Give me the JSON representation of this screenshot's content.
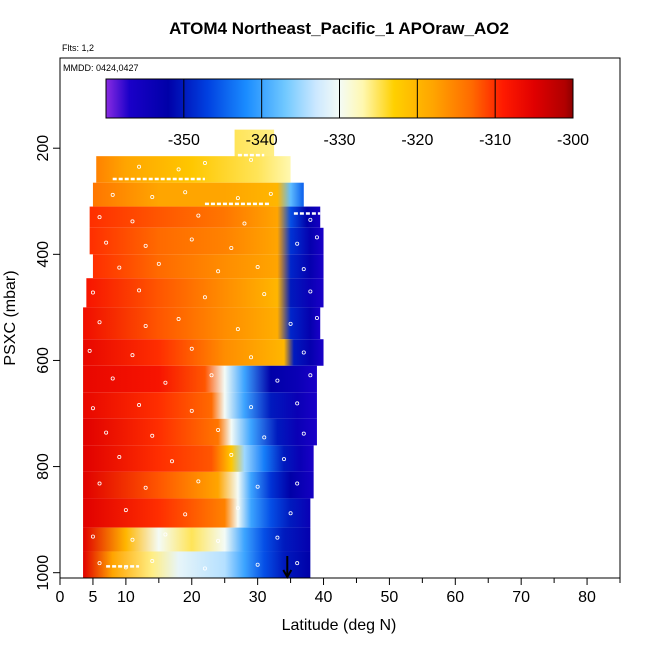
{
  "chart_data": {
    "type": "heatmap",
    "title": "ATOM4 Northeast_Pacific_1 APOraw_AO2",
    "flights_label": "Flts: 1,2",
    "mmdd_label": "MMDD: 0424,0427",
    "xlabel": "Latitude (deg N)",
    "ylabel": "PSXC (mbar)",
    "xlim": [
      0,
      85
    ],
    "ylim": [
      1010,
      30
    ],
    "x_ticks": [
      0,
      5,
      10,
      20,
      30,
      40,
      50,
      60,
      70,
      80
    ],
    "x_minor_ticks": [
      15,
      25,
      35,
      45,
      55,
      65,
      75,
      85
    ],
    "y_ticks": [
      200,
      400,
      600,
      800,
      1000
    ],
    "marker_latitude": 34.5,
    "colorbar": {
      "range": [
        -360,
        -300
      ],
      "ticks": [
        -350,
        -340,
        -330,
        -320,
        -310,
        -300
      ],
      "stops": [
        {
          "v": -360,
          "color": "#8a2be2"
        },
        {
          "v": -357,
          "color": "#1a00c8"
        },
        {
          "v": -352,
          "color": "#0000a8"
        },
        {
          "v": -347,
          "color": "#0040e0"
        },
        {
          "v": -342,
          "color": "#1a8cff"
        },
        {
          "v": -337,
          "color": "#70c8ff"
        },
        {
          "v": -333,
          "color": "#cce8ff"
        },
        {
          "v": -330,
          "color": "#f4fbf6"
        },
        {
          "v": -327,
          "color": "#fff8b0"
        },
        {
          "v": -323,
          "color": "#ffd000"
        },
        {
          "v": -318,
          "color": "#ffa500"
        },
        {
          "v": -313,
          "color": "#ff6a00"
        },
        {
          "v": -309,
          "color": "#ff1a00"
        },
        {
          "v": -305,
          "color": "#e00000"
        },
        {
          "v": -301,
          "color": "#b00000"
        },
        {
          "v": -300,
          "color": "#8b0000"
        }
      ]
    },
    "bands": [
      {
        "name": "band-150",
        "p0": 165,
        "p1": 230,
        "lat": [
          26.5,
          32.5
        ],
        "profile": [
          [
            26.5,
            -325
          ],
          [
            32.5,
            -326
          ]
        ]
      },
      {
        "name": "band-250",
        "p0": 215,
        "p1": 265,
        "lat": [
          5.5,
          35
        ],
        "profile": [
          [
            5.5,
            -315
          ],
          [
            10,
            -318
          ],
          [
            20,
            -322
          ],
          [
            30,
            -325
          ],
          [
            35,
            -327
          ]
        ]
      },
      {
        "name": "band-300",
        "p0": 265,
        "p1": 310,
        "lat": [
          5,
          37
        ],
        "profile": [
          [
            5,
            -314
          ],
          [
            15,
            -318
          ],
          [
            25,
            -318
          ],
          [
            33,
            -320
          ],
          [
            35,
            -338
          ],
          [
            37,
            -345
          ]
        ]
      },
      {
        "name": "band-350",
        "p0": 310,
        "p1": 350,
        "lat": [
          4.5,
          39.5
        ],
        "profile": [
          [
            4.5,
            -310
          ],
          [
            15,
            -312
          ],
          [
            25,
            -314
          ],
          [
            33,
            -318
          ],
          [
            35,
            -346
          ],
          [
            37.5,
            -352
          ],
          [
            39.5,
            -356
          ]
        ]
      },
      {
        "name": "band-400",
        "p0": 350,
        "p1": 400,
        "lat": [
          4.5,
          40
        ],
        "profile": [
          [
            4.5,
            -310
          ],
          [
            15,
            -313
          ],
          [
            25,
            -315
          ],
          [
            33,
            -318
          ],
          [
            35,
            -348
          ],
          [
            38,
            -353
          ],
          [
            40,
            -357
          ]
        ]
      },
      {
        "name": "band-450",
        "p0": 400,
        "p1": 445,
        "lat": [
          5,
          40
        ],
        "profile": [
          [
            5,
            -310
          ],
          [
            15,
            -313
          ],
          [
            25,
            -316
          ],
          [
            33,
            -318
          ],
          [
            35,
            -349
          ],
          [
            38,
            -353
          ],
          [
            40,
            -357
          ]
        ]
      },
      {
        "name": "band-500",
        "p0": 445,
        "p1": 500,
        "lat": [
          4,
          40
        ],
        "profile": [
          [
            4,
            -308
          ],
          [
            15,
            -312
          ],
          [
            25,
            -316
          ],
          [
            33,
            -320
          ],
          [
            35,
            -350
          ],
          [
            38,
            -354
          ],
          [
            40,
            -357
          ]
        ]
      },
      {
        "name": "band-550",
        "p0": 500,
        "p1": 560,
        "lat": [
          3.5,
          39.5
        ],
        "profile": [
          [
            3.5,
            -307
          ],
          [
            15,
            -312
          ],
          [
            25,
            -316
          ],
          [
            33,
            -319
          ],
          [
            35,
            -349
          ],
          [
            38,
            -353
          ],
          [
            39.5,
            -357
          ]
        ]
      },
      {
        "name": "band-600",
        "p0": 560,
        "p1": 610,
        "lat": [
          3.5,
          40
        ],
        "profile": [
          [
            3.5,
            -306
          ],
          [
            15,
            -310
          ],
          [
            25,
            -316
          ],
          [
            34,
            -320
          ],
          [
            35.5,
            -350
          ],
          [
            38,
            -353
          ],
          [
            40,
            -357
          ]
        ]
      },
      {
        "name": "band-650",
        "p0": 610,
        "p1": 660,
        "lat": [
          3.5,
          39
        ],
        "profile": [
          [
            3.5,
            -306
          ],
          [
            15,
            -308
          ],
          [
            22,
            -312
          ],
          [
            25,
            -330
          ],
          [
            28,
            -340
          ],
          [
            32,
            -352
          ],
          [
            36,
            -354
          ],
          [
            39,
            -357
          ]
        ]
      },
      {
        "name": "band-700",
        "p0": 660,
        "p1": 710,
        "lat": [
          3.5,
          39
        ],
        "profile": [
          [
            3.5,
            -306
          ],
          [
            15,
            -310
          ],
          [
            23,
            -313
          ],
          [
            25,
            -330
          ],
          [
            28,
            -340
          ],
          [
            32,
            -350
          ],
          [
            36,
            -354
          ],
          [
            39,
            -357
          ]
        ]
      },
      {
        "name": "band-750",
        "p0": 710,
        "p1": 760,
        "lat": [
          3.5,
          39
        ],
        "profile": [
          [
            3.5,
            -305
          ],
          [
            15,
            -310
          ],
          [
            24,
            -314
          ],
          [
            26,
            -330
          ],
          [
            29,
            -340
          ],
          [
            33,
            -350
          ],
          [
            36,
            -354
          ],
          [
            39,
            -357
          ]
        ]
      },
      {
        "name": "band-800",
        "p0": 760,
        "p1": 810,
        "lat": [
          3.5,
          38.5
        ],
        "profile": [
          [
            3.5,
            -305
          ],
          [
            15,
            -310
          ],
          [
            23,
            -312
          ],
          [
            26,
            -322
          ],
          [
            28,
            -335
          ],
          [
            31,
            -343
          ],
          [
            34,
            -350
          ],
          [
            36.5,
            -354
          ],
          [
            38.5,
            -357
          ]
        ]
      },
      {
        "name": "band-850",
        "p0": 810,
        "p1": 860,
        "lat": [
          3.5,
          38.5
        ],
        "profile": [
          [
            3.5,
            -305
          ],
          [
            15,
            -312
          ],
          [
            24,
            -318
          ],
          [
            27,
            -330
          ],
          [
            29,
            -340
          ],
          [
            32,
            -348
          ],
          [
            35,
            -352
          ],
          [
            38.5,
            -356
          ]
        ]
      },
      {
        "name": "band-900",
        "p0": 860,
        "p1": 915,
        "lat": [
          3.5,
          38
        ],
        "profile": [
          [
            3.5,
            -305
          ],
          [
            15,
            -310
          ],
          [
            25,
            -315
          ],
          [
            27,
            -330
          ],
          [
            29,
            -340
          ],
          [
            32,
            -346
          ],
          [
            35,
            -350
          ],
          [
            38,
            -354
          ]
        ]
      },
      {
        "name": "band-950",
        "p0": 915,
        "p1": 960,
        "lat": [
          3.5,
          38
        ],
        "profile": [
          [
            3.5,
            -305
          ],
          [
            10,
            -320
          ],
          [
            15,
            -330
          ],
          [
            20,
            -325
          ],
          [
            25,
            -330
          ],
          [
            28,
            -340
          ],
          [
            31,
            -346
          ],
          [
            34,
            -350
          ],
          [
            38,
            -353
          ]
        ]
      },
      {
        "name": "band-1000",
        "p0": 960,
        "p1": 1010,
        "lat": [
          3.5,
          38
        ],
        "profile": [
          [
            3.5,
            -305
          ],
          [
            8,
            -318
          ],
          [
            14,
            -326
          ],
          [
            18,
            -331
          ],
          [
            25,
            -334
          ],
          [
            28,
            -340
          ],
          [
            31,
            -346
          ],
          [
            34,
            -350
          ],
          [
            38,
            -352
          ]
        ]
      }
    ],
    "sample_points": [
      {
        "lat": 12,
        "p": 235
      },
      {
        "lat": 18,
        "p": 240
      },
      {
        "lat": 22,
        "p": 228
      },
      {
        "lat": 29,
        "p": 222
      },
      {
        "lat": 8,
        "p": 288
      },
      {
        "lat": 14,
        "p": 292
      },
      {
        "lat": 19,
        "p": 283
      },
      {
        "lat": 27,
        "p": 294
      },
      {
        "lat": 32,
        "p": 286
      },
      {
        "lat": 6,
        "p": 330
      },
      {
        "lat": 11,
        "p": 338
      },
      {
        "lat": 21,
        "p": 327
      },
      {
        "lat": 28,
        "p": 342
      },
      {
        "lat": 38,
        "p": 335
      },
      {
        "lat": 7,
        "p": 378
      },
      {
        "lat": 13,
        "p": 384
      },
      {
        "lat": 20,
        "p": 372
      },
      {
        "lat": 26,
        "p": 388
      },
      {
        "lat": 36,
        "p": 380
      },
      {
        "lat": 39,
        "p": 368
      },
      {
        "lat": 9,
        "p": 425
      },
      {
        "lat": 15,
        "p": 418
      },
      {
        "lat": 24,
        "p": 432
      },
      {
        "lat": 30,
        "p": 424
      },
      {
        "lat": 37,
        "p": 428
      },
      {
        "lat": 5,
        "p": 472
      },
      {
        "lat": 12,
        "p": 468
      },
      {
        "lat": 22,
        "p": 481
      },
      {
        "lat": 31,
        "p": 475
      },
      {
        "lat": 38,
        "p": 470
      },
      {
        "lat": 6,
        "p": 528
      },
      {
        "lat": 13,
        "p": 535
      },
      {
        "lat": 18,
        "p": 522
      },
      {
        "lat": 27,
        "p": 541
      },
      {
        "lat": 35,
        "p": 531
      },
      {
        "lat": 39,
        "p": 520
      },
      {
        "lat": 4.5,
        "p": 582
      },
      {
        "lat": 11,
        "p": 590
      },
      {
        "lat": 20,
        "p": 578
      },
      {
        "lat": 29,
        "p": 594
      },
      {
        "lat": 37,
        "p": 585
      },
      {
        "lat": 8,
        "p": 634
      },
      {
        "lat": 16,
        "p": 642
      },
      {
        "lat": 23,
        "p": 628
      },
      {
        "lat": 33,
        "p": 638
      },
      {
        "lat": 38,
        "p": 628
      },
      {
        "lat": 5,
        "p": 690
      },
      {
        "lat": 12,
        "p": 684
      },
      {
        "lat": 20,
        "p": 695
      },
      {
        "lat": 29,
        "p": 688
      },
      {
        "lat": 36,
        "p": 681
      },
      {
        "lat": 7,
        "p": 736
      },
      {
        "lat": 14,
        "p": 742
      },
      {
        "lat": 24,
        "p": 731
      },
      {
        "lat": 31,
        "p": 745
      },
      {
        "lat": 37,
        "p": 738
      },
      {
        "lat": 9,
        "p": 782
      },
      {
        "lat": 17,
        "p": 790
      },
      {
        "lat": 26,
        "p": 778
      },
      {
        "lat": 34,
        "p": 786
      },
      {
        "lat": 6,
        "p": 832
      },
      {
        "lat": 13,
        "p": 840
      },
      {
        "lat": 21,
        "p": 828
      },
      {
        "lat": 30,
        "p": 838
      },
      {
        "lat": 36,
        "p": 832
      },
      {
        "lat": 10,
        "p": 882
      },
      {
        "lat": 19,
        "p": 890
      },
      {
        "lat": 27,
        "p": 878
      },
      {
        "lat": 35,
        "p": 888
      },
      {
        "lat": 5,
        "p": 932
      },
      {
        "lat": 11,
        "p": 938
      },
      {
        "lat": 16,
        "p": 928
      },
      {
        "lat": 24,
        "p": 940
      },
      {
        "lat": 33,
        "p": 934
      },
      {
        "lat": 6,
        "p": 982
      },
      {
        "lat": 10,
        "p": 990
      },
      {
        "lat": 14,
        "p": 978
      },
      {
        "lat": 22,
        "p": 992
      },
      {
        "lat": 30,
        "p": 985
      },
      {
        "lat": 36,
        "p": 982
      }
    ],
    "highlight_segments": [
      {
        "lat": [
          27,
          31
        ],
        "p": 213
      },
      {
        "lat": [
          8,
          22
        ],
        "p": 258
      },
      {
        "lat": [
          22,
          32
        ],
        "p": 305
      },
      {
        "lat": [
          35.5,
          39.5
        ],
        "p": 323
      },
      {
        "lat": [
          7,
          12
        ],
        "p": 988
      }
    ]
  }
}
